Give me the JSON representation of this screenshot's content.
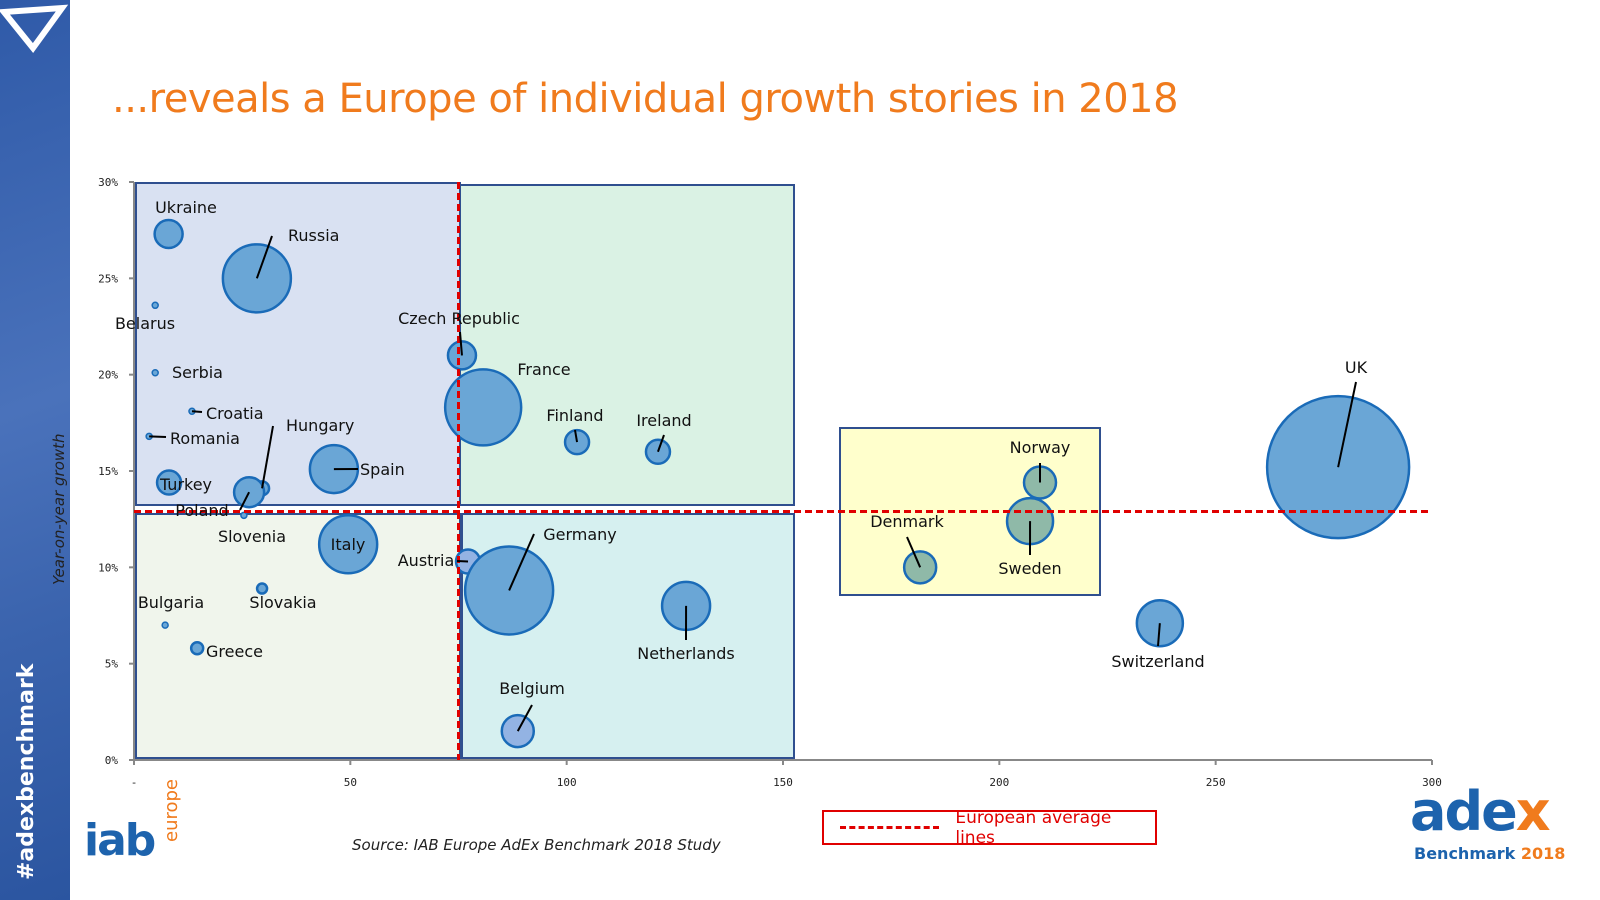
{
  "sidebar": {
    "hashtag": "#adexbenchmark",
    "icon": "triangle-down-icon"
  },
  "title": "...reveals a Europe of individual growth stories in 2018",
  "source": "Source: IAB Europe AdEx Benchmark 2018 Study",
  "legend": {
    "label": "European average lines",
    "color": "#e00000"
  },
  "logos": {
    "iab": "iab",
    "iab_sub": "europe",
    "adex": "adex",
    "adex_sub": "Benchmark",
    "adex_year": "2018"
  },
  "chart_data": {
    "type": "scatter",
    "subtype": "bubble",
    "title": "",
    "xlabel": "",
    "ylabel": "Year-on-year growth",
    "xlim": [
      0,
      300
    ],
    "ylim": [
      0,
      30
    ],
    "x_ticks": [
      "-",
      "50",
      "100",
      "150",
      "200",
      "250",
      "300"
    ],
    "y_ticks": [
      "0%",
      "5%",
      "10%",
      "15%",
      "20%",
      "25%",
      "30%"
    ],
    "grid": false,
    "average_lines": {
      "x": 75,
      "y": 12.9
    },
    "colors": {
      "bubble": "#6aa6d6",
      "bubble_border": "#1a6bb8",
      "nordic": "#8fb9a8",
      "light": "#93b3e3",
      "avg_line": "#e00000"
    },
    "quadrant_colors": {
      "upper_left": "#d9e1f2",
      "upper_right": "#daf2e4",
      "lower_left": "#f0f5ec",
      "lower_right": "#d6f0f0",
      "nordic_box": "#ffffcc"
    },
    "points": [
      {
        "name": "Ukraine",
        "x": 8,
        "y": 27.3,
        "size": 14
      },
      {
        "name": "Russia",
        "x": 28.4,
        "y": 25.0,
        "size": 34
      },
      {
        "name": "Belarus",
        "x": 4.9,
        "y": 23.6,
        "size": 3
      },
      {
        "name": "Serbia",
        "x": 4.9,
        "y": 20.1,
        "size": 3
      },
      {
        "name": "Croatia",
        "x": 13.4,
        "y": 18.1,
        "size": 3
      },
      {
        "name": "Romania",
        "x": 3.5,
        "y": 16.8,
        "size": 3
      },
      {
        "name": "Hungary",
        "x": 29.6,
        "y": 14.1,
        "size": 7
      },
      {
        "name": "Spain",
        "x": 46.2,
        "y": 15.1,
        "size": 24
      },
      {
        "name": "Turkey",
        "x": 8.1,
        "y": 14.4,
        "size": 12
      },
      {
        "name": "Poland",
        "x": 26.6,
        "y": 13.9,
        "size": 15
      },
      {
        "name": "Slovenia",
        "x": 25.4,
        "y": 12.7,
        "size": 3
      },
      {
        "name": "Italy",
        "x": 49.5,
        "y": 11.2,
        "size": 29
      },
      {
        "name": "Bulgaria",
        "x": 7.2,
        "y": 7.0,
        "size": 3
      },
      {
        "name": "Slovakia",
        "x": 29.6,
        "y": 8.9,
        "size": 5
      },
      {
        "name": "Greece",
        "x": 14.6,
        "y": 5.8,
        "size": 6
      },
      {
        "name": "Czech Republic",
        "x": 75.8,
        "y": 21.0,
        "size": 14
      },
      {
        "name": "France",
        "x": 80.7,
        "y": 18.3,
        "size": 38
      },
      {
        "name": "Finland",
        "x": 102.4,
        "y": 16.5,
        "size": 12
      },
      {
        "name": "Ireland",
        "x": 121.1,
        "y": 16.0,
        "size": 12
      },
      {
        "name": "Austria",
        "x": 77.2,
        "y": 10.3,
        "size": 12
      },
      {
        "name": "Germany",
        "x": 86.7,
        "y": 8.8,
        "size": 44
      },
      {
        "name": "Netherlands",
        "x": 127.6,
        "y": 8.0,
        "size": 24
      },
      {
        "name": "Belgium",
        "x": 88.7,
        "y": 1.5,
        "size": 16
      },
      {
        "name": "Denmark",
        "x": 181.7,
        "y": 10.0,
        "size": 16
      },
      {
        "name": "Norway",
        "x": 209.4,
        "y": 14.4,
        "size": 16
      },
      {
        "name": "Sweden",
        "x": 207.1,
        "y": 12.4,
        "size": 23
      },
      {
        "name": "Switzerland",
        "x": 237.1,
        "y": 7.1,
        "size": 23
      },
      {
        "name": "UK",
        "x": 278.3,
        "y": 15.2,
        "size": 71
      }
    ]
  }
}
